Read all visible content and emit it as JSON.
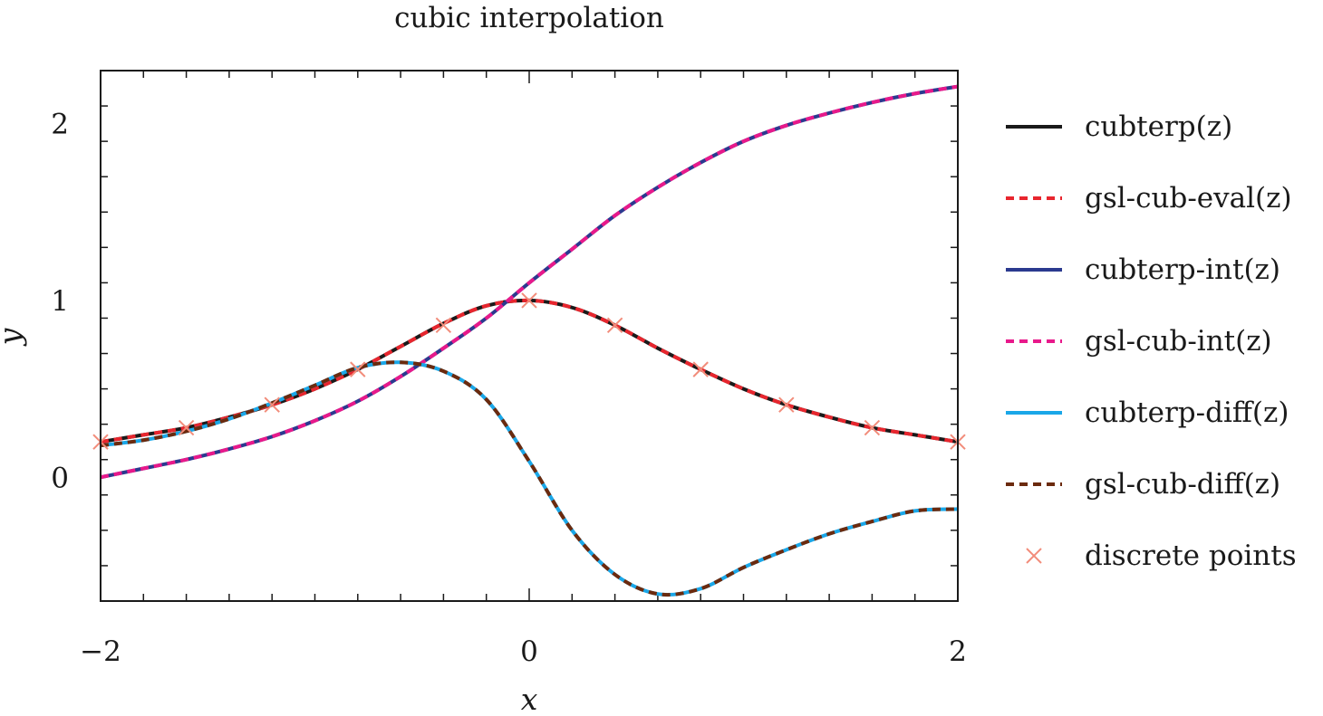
{
  "chart_data": {
    "type": "line",
    "title": "cubic interpolation",
    "xlabel": "x",
    "ylabel": "y",
    "xlim": [
      -2,
      2
    ],
    "ylim": [
      -0.7,
      2.3
    ],
    "x_ticks": [
      -2,
      0,
      2
    ],
    "y_ticks": [
      0,
      1,
      2
    ],
    "x_tick_labels": [
      "−2",
      "0",
      "2"
    ],
    "y_tick_labels": [
      "0",
      "1",
      "2"
    ],
    "grid": false,
    "legend_position": "right",
    "x": [
      -2.0,
      -1.8,
      -1.6,
      -1.4,
      -1.2,
      -1.0,
      -0.8,
      -0.6,
      -0.4,
      -0.2,
      0.0,
      0.2,
      0.4,
      0.6,
      0.8,
      1.0,
      1.2,
      1.4,
      1.6,
      1.8,
      2.0
    ],
    "series": [
      {
        "name": "cubterp(z)",
        "color": "#1a1a1a",
        "style": "solid",
        "values": [
          0.2,
          0.24,
          0.28,
          0.34,
          0.41,
          0.5,
          0.61,
          0.74,
          0.87,
          0.97,
          1.0,
          0.96,
          0.86,
          0.73,
          0.61,
          0.5,
          0.41,
          0.34,
          0.28,
          0.24,
          0.2
        ]
      },
      {
        "name": "gsl-cub-eval(z)",
        "color": "#e8262e",
        "style": "dashed",
        "values": [
          0.2,
          0.24,
          0.28,
          0.34,
          0.41,
          0.5,
          0.61,
          0.74,
          0.87,
          0.97,
          1.0,
          0.96,
          0.86,
          0.73,
          0.61,
          0.5,
          0.41,
          0.34,
          0.28,
          0.24,
          0.2
        ]
      },
      {
        "name": "cubterp-int(z)",
        "color": "#2b3a8f",
        "style": "solid",
        "values": [
          0.0,
          0.05,
          0.1,
          0.16,
          0.23,
          0.32,
          0.43,
          0.57,
          0.73,
          0.9,
          1.1,
          1.29,
          1.48,
          1.64,
          1.78,
          1.9,
          1.99,
          2.06,
          2.12,
          2.17,
          2.21
        ]
      },
      {
        "name": "gsl-cub-int(z)",
        "color": "#e8198b",
        "style": "dashed",
        "values": [
          0.0,
          0.05,
          0.1,
          0.16,
          0.23,
          0.32,
          0.43,
          0.57,
          0.73,
          0.9,
          1.1,
          1.29,
          1.48,
          1.64,
          1.78,
          1.9,
          1.99,
          2.06,
          2.12,
          2.17,
          2.21
        ]
      },
      {
        "name": "cubterp-diff(z)",
        "color": "#1aa7e8",
        "style": "solid",
        "values": [
          0.18,
          0.21,
          0.26,
          0.33,
          0.42,
          0.52,
          0.62,
          0.65,
          0.6,
          0.44,
          0.09,
          -0.3,
          -0.55,
          -0.66,
          -0.63,
          -0.51,
          -0.41,
          -0.32,
          -0.25,
          -0.19,
          -0.18
        ]
      },
      {
        "name": "gsl-cub-diff(z)",
        "color": "#6b2a0e",
        "style": "dashed",
        "values": [
          0.18,
          0.21,
          0.26,
          0.33,
          0.42,
          0.52,
          0.62,
          0.65,
          0.6,
          0.44,
          0.09,
          -0.3,
          -0.55,
          -0.66,
          -0.63,
          -0.51,
          -0.41,
          -0.32,
          -0.25,
          -0.19,
          -0.18
        ]
      }
    ],
    "points": {
      "name": "discrete points",
      "color": "#f28c7a",
      "marker": "x",
      "x": [
        -2.0,
        -1.6,
        -1.2,
        -0.8,
        -0.4,
        0.0,
        0.4,
        0.8,
        1.2,
        1.6,
        2.0
      ],
      "y": [
        0.2,
        0.28,
        0.41,
        0.61,
        0.86,
        1.0,
        0.86,
        0.61,
        0.41,
        0.28,
        0.2
      ]
    }
  }
}
